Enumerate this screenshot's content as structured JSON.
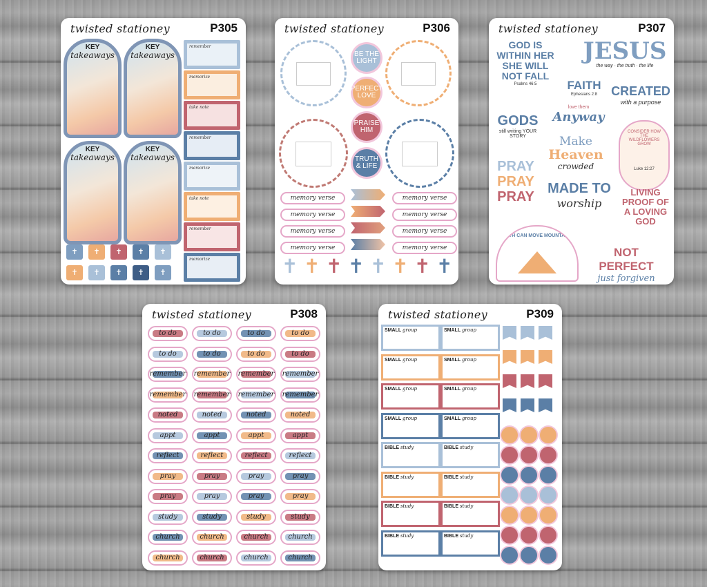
{
  "brand": "twisted stationey",
  "colors": {
    "blue": "#5b7fa6",
    "lightblue": "#a9c0d8",
    "peach": "#efae74",
    "rose": "#c0646f",
    "pink": "#e5a7c8",
    "navy": "#3e5d86"
  },
  "sheets": {
    "p305": {
      "code": "P305",
      "arch_key": "KEY",
      "arch_text": "takeaways",
      "boxes": [
        "remember",
        "memorize",
        "take note",
        "remember",
        "memorize",
        "take note",
        "remember",
        "memorize"
      ]
    },
    "p306": {
      "code": "P306",
      "circles": [
        "BE THE LIGHT",
        "PERFECT LOVE",
        "PRAISE HIM",
        "TRUTH & LIFE"
      ],
      "memory": "memory verse"
    },
    "p307": {
      "code": "P307",
      "god_within": "GOD IS WITHIN HER SHE WILL NOT FALL",
      "psalms": "Psalms 46:5",
      "jesus": "JESUS",
      "jesus_sub": "the way · the truth · the life",
      "faith": "FAITH",
      "ephesians": "Ephesians 2:8",
      "created": "CREATED",
      "created_sub": "with a purpose",
      "gods": "GODS",
      "gods_sub": "still writing YOUR STORY",
      "love": "love them",
      "anyway": "Anyway",
      "make": "Make",
      "heaven": "Heaven",
      "crowded": "crowded",
      "consider": "CONSIDER HOW THE WILDFLOWERS GROW",
      "luke": "Luke 12:27",
      "pray": "PRAY",
      "made_to": "MADE TO",
      "worship": "worship",
      "living": "LIVING PROOF OF A LOVING GOD",
      "mountains": "FAITH CAN MOVE MOUNTAINS",
      "not_perfect": "NOT PERFECT",
      "forgiven": "just forgiven"
    },
    "p308": {
      "code": "P308",
      "rows": [
        "to do",
        "to do",
        "remember",
        "remember",
        "noted",
        "appt",
        "reflect",
        "pray",
        "pray",
        "study",
        "church",
        "church"
      ]
    },
    "p309": {
      "code": "P309",
      "small": "SMALL",
      "group": "group",
      "bible": "BIBLE",
      "study": "study"
    }
  }
}
